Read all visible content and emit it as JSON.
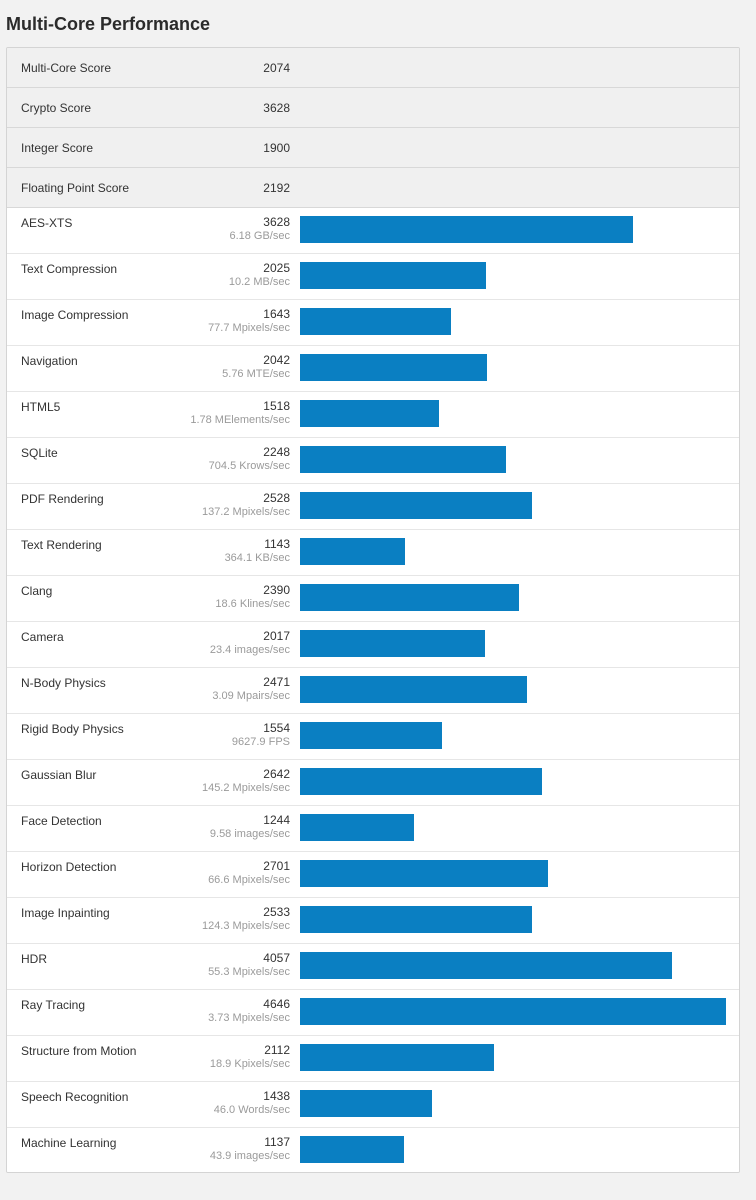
{
  "page": {
    "title": "Multi-Core Performance",
    "bar_color": "#0a7fc2",
    "max_score": 4646
  },
  "summary": [
    {
      "name": "Multi-Core Score",
      "score": "2074"
    },
    {
      "name": "Crypto Score",
      "score": "3628"
    },
    {
      "name": "Integer Score",
      "score": "1900"
    },
    {
      "name": "Floating Point Score",
      "score": "2192"
    }
  ],
  "benchmarks": [
    {
      "name": "AES-XTS",
      "score": "3628",
      "rate": "6.18 GB/sec"
    },
    {
      "name": "Text Compression",
      "score": "2025",
      "rate": "10.2 MB/sec"
    },
    {
      "name": "Image Compression",
      "score": "1643",
      "rate": "77.7 Mpixels/sec"
    },
    {
      "name": "Navigation",
      "score": "2042",
      "rate": "5.76 MTE/sec"
    },
    {
      "name": "HTML5",
      "score": "1518",
      "rate": "1.78 MElements/sec"
    },
    {
      "name": "SQLite",
      "score": "2248",
      "rate": "704.5 Krows/sec"
    },
    {
      "name": "PDF Rendering",
      "score": "2528",
      "rate": "137.2 Mpixels/sec"
    },
    {
      "name": "Text Rendering",
      "score": "1143",
      "rate": "364.1 KB/sec"
    },
    {
      "name": "Clang",
      "score": "2390",
      "rate": "18.6 Klines/sec"
    },
    {
      "name": "Camera",
      "score": "2017",
      "rate": "23.4 images/sec"
    },
    {
      "name": "N-Body Physics",
      "score": "2471",
      "rate": "3.09 Mpairs/sec"
    },
    {
      "name": "Rigid Body Physics",
      "score": "1554",
      "rate": "9627.9 FPS"
    },
    {
      "name": "Gaussian Blur",
      "score": "2642",
      "rate": "145.2 Mpixels/sec"
    },
    {
      "name": "Face Detection",
      "score": "1244",
      "rate": "9.58 images/sec"
    },
    {
      "name": "Horizon Detection",
      "score": "2701",
      "rate": "66.6 Mpixels/sec"
    },
    {
      "name": "Image Inpainting",
      "score": "2533",
      "rate": "124.3 Mpixels/sec"
    },
    {
      "name": "HDR",
      "score": "4057",
      "rate": "55.3 Mpixels/sec"
    },
    {
      "name": "Ray Tracing",
      "score": "4646",
      "rate": "3.73 Mpixels/sec"
    },
    {
      "name": "Structure from Motion",
      "score": "2112",
      "rate": "18.9 Kpixels/sec"
    },
    {
      "name": "Speech Recognition",
      "score": "1438",
      "rate": "46.0 Words/sec"
    },
    {
      "name": "Machine Learning",
      "score": "1137",
      "rate": "43.9 images/sec"
    }
  ]
}
